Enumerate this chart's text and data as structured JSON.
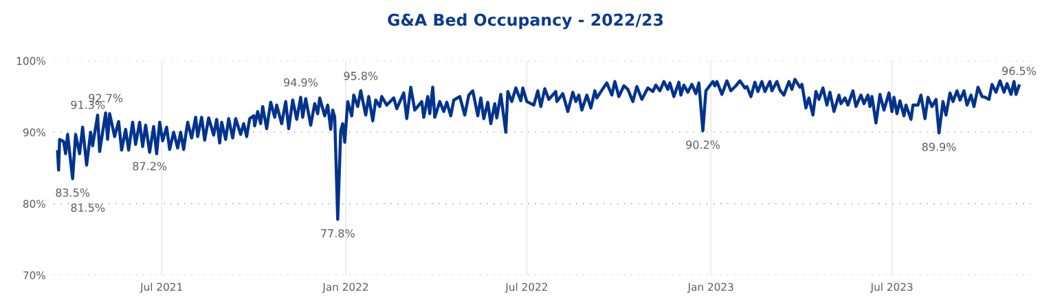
{
  "chart_data": {
    "type": "line",
    "title": "G&A Bed Occupancy - 2022/23",
    "x": [
      "2021-03-19",
      "2021-03-20",
      "2021-03-21",
      "2021-03-25",
      "2021-03-27",
      "2021-03-29",
      "2021-04-03",
      "2021-04-06",
      "2021-04-10",
      "2021-04-13",
      "2021-04-17",
      "2021-04-21",
      "2021-04-23",
      "2021-04-28",
      "2021-04-30",
      "2021-05-06",
      "2021-05-08",
      "2021-05-10",
      "2021-05-15",
      "2021-05-19",
      "2021-05-22",
      "2021-05-26",
      "2021-05-29",
      "2021-06-02",
      "2021-06-05",
      "2021-06-09",
      "2021-06-12",
      "2021-06-15",
      "2021-06-19",
      "2021-06-23",
      "2021-06-26",
      "2021-06-29",
      "2021-07-02",
      "2021-07-06",
      "2021-07-09",
      "2021-07-13",
      "2021-07-17",
      "2021-07-20",
      "2021-07-23",
      "2021-07-27",
      "2021-07-31",
      "2021-08-04",
      "2021-08-06",
      "2021-08-10",
      "2021-08-13",
      "2021-08-17",
      "2021-08-22",
      "2021-08-25",
      "2021-08-28",
      "2021-08-30",
      "2021-09-03",
      "2021-09-06",
      "2021-09-10",
      "2021-09-13",
      "2021-09-18",
      "2021-09-21",
      "2021-09-24",
      "2021-09-27",
      "2021-10-01",
      "2021-10-02",
      "2021-10-05",
      "2021-10-08",
      "2021-10-10",
      "2021-10-14",
      "2021-10-18",
      "2021-10-22",
      "2021-10-24",
      "2021-10-29",
      "2021-11-02",
      "2021-11-05",
      "2021-11-09",
      "2021-11-13",
      "2021-11-17",
      "2021-11-19",
      "2021-11-22",
      "2021-11-27",
      "2021-12-01",
      "2021-12-04",
      "2021-12-06",
      "2021-12-11",
      "2021-12-14",
      "2021-12-17",
      "2021-12-19",
      "2021-12-21",
      "2021-12-24",
      "2021-12-27",
      "2021-12-29",
      "2021-12-31",
      "2022-01-03",
      "2022-01-07",
      "2022-01-09",
      "2022-01-13",
      "2022-01-16",
      "2022-01-21",
      "2022-01-24",
      "2022-01-28",
      "2022-01-31",
      "2022-02-04",
      "2022-02-06",
      "2022-02-11",
      "2022-02-18",
      "2022-02-21",
      "2022-02-28",
      "2022-03-03",
      "2022-03-07",
      "2022-03-11",
      "2022-03-18",
      "2022-03-20",
      "2022-03-24",
      "2022-03-26",
      "2022-03-29",
      "2022-03-31",
      "2022-04-05",
      "2022-04-09",
      "2022-04-12",
      "2022-04-16",
      "2022-04-19",
      "2022-04-25",
      "2022-04-30",
      "2022-05-04",
      "2022-05-08",
      "2022-05-13",
      "2022-05-16",
      "2022-05-19",
      "2022-05-23",
      "2022-05-26",
      "2022-05-30",
      "2022-06-01",
      "2022-06-05",
      "2022-06-10",
      "2022-06-12",
      "2022-06-16",
      "2022-06-20",
      "2022-06-25",
      "2022-06-27",
      "2022-07-01",
      "2022-07-08",
      "2022-07-12",
      "2022-07-15",
      "2022-07-19",
      "2022-07-23",
      "2022-07-30",
      "2022-07-31",
      "2022-08-06",
      "2022-08-11",
      "2022-08-16",
      "2022-08-19",
      "2022-08-22",
      "2022-08-25",
      "2022-08-30",
      "2022-09-03",
      "2022-09-07",
      "2022-09-09",
      "2022-09-15",
      "2022-09-19",
      "2022-09-24",
      "2022-09-27",
      "2022-10-01",
      "2022-10-06",
      "2022-10-10",
      "2022-10-15",
      "2022-10-19",
      "2022-10-24",
      "2022-10-30",
      "2022-11-04",
      "2022-11-07",
      "2022-11-11",
      "2022-11-15",
      "2022-11-19",
      "2022-11-21",
      "2022-11-25",
      "2022-11-30",
      "2022-12-02",
      "2022-12-05",
      "2022-12-09",
      "2022-12-13",
      "2022-12-17",
      "2022-12-20",
      "2022-12-24",
      "2022-12-27",
      "2023-01-03",
      "2023-01-05",
      "2023-01-07",
      "2023-01-12",
      "2023-01-17",
      "2023-01-21",
      "2023-01-26",
      "2023-01-30",
      "2023-02-04",
      "2023-02-06",
      "2023-02-10",
      "2023-02-14",
      "2023-02-17",
      "2023-02-21",
      "2023-02-24",
      "2023-03-01",
      "2023-03-03",
      "2023-03-08",
      "2023-03-11",
      "2023-03-15",
      "2023-03-20",
      "2023-03-23",
      "2023-03-26",
      "2023-03-31",
      "2023-04-02",
      "2023-04-06",
      "2023-04-09",
      "2023-04-13",
      "2023-04-16",
      "2023-04-19",
      "2023-04-23",
      "2023-04-27",
      "2023-04-30",
      "2023-05-04",
      "2023-05-09",
      "2023-05-11",
      "2023-05-15",
      "2023-05-18",
      "2023-05-23",
      "2023-05-26",
      "2023-05-31",
      "2023-06-03",
      "2023-06-07",
      "2023-06-09",
      "2023-06-11",
      "2023-06-15",
      "2023-06-19",
      "2023-06-23",
      "2023-06-28",
      "2023-07-01",
      "2023-07-03",
      "2023-07-06",
      "2023-07-09",
      "2023-07-13",
      "2023-07-15",
      "2023-07-20",
      "2023-07-22",
      "2023-07-27",
      "2023-07-30",
      "2023-08-03",
      "2023-08-06",
      "2023-08-10",
      "2023-08-14",
      "2023-08-17",
      "2023-08-21",
      "2023-08-24",
      "2023-08-28",
      "2023-08-31",
      "2023-09-04",
      "2023-09-07",
      "2023-09-11",
      "2023-09-14",
      "2023-09-18",
      "2023-09-21",
      "2023-09-25",
      "2023-09-29",
      "2023-10-02",
      "2023-10-06",
      "2023-10-09",
      "2023-10-13",
      "2023-10-17",
      "2023-10-21",
      "2023-10-24",
      "2023-10-28",
      "2023-10-31",
      "2023-11-02",
      "2023-11-05"
    ],
    "series": [
      {
        "color": "#00338d",
        "values": [
          87.3,
          84.7,
          89.0,
          88.7,
          87.0,
          89.7,
          83.5,
          89.7,
          87.0,
          90.7,
          85.4,
          90.0,
          88.1,
          92.4,
          87.3,
          92.7,
          89.0,
          92.6,
          89.4,
          91.5,
          87.5,
          90.4,
          87.5,
          91.4,
          88.3,
          91.4,
          88.0,
          91.0,
          87.2,
          90.8,
          87.0,
          91.4,
          88.8,
          90.7,
          87.6,
          90.0,
          87.8,
          90.0,
          87.6,
          91.4,
          89.2,
          92.1,
          89.4,
          92.1,
          88.9,
          92.0,
          89.6,
          91.8,
          88.5,
          91.4,
          89.0,
          91.9,
          89.2,
          91.9,
          89.7,
          91.2,
          89.4,
          91.9,
          92.3,
          90.9,
          92.9,
          91.2,
          93.6,
          90.5,
          94.2,
          92.1,
          93.8,
          91.2,
          94.3,
          90.5,
          94.5,
          91.8,
          94.9,
          92.1,
          94.7,
          91.0,
          94.0,
          92.6,
          94.8,
          92.3,
          93.8,
          90.4,
          93.1,
          92.1,
          77.8,
          90.2,
          91.2,
          88.6,
          94.3,
          92.3,
          95.2,
          93.6,
          95.8,
          92.4,
          95.0,
          91.6,
          94.5,
          93.6,
          95.0,
          93.8,
          94.8,
          93.3,
          95.5,
          91.9,
          96.3,
          93.1,
          94.3,
          92.1,
          95.0,
          92.6,
          96.3,
          92.1,
          94.3,
          92.9,
          94.2,
          92.3,
          94.5,
          95.0,
          92.4,
          95.2,
          95.8,
          92.3,
          94.8,
          91.9,
          94.2,
          91.2,
          94.0,
          92.0,
          95.3,
          90.0,
          95.7,
          94.3,
          96.2,
          94.4,
          96.2,
          94.3,
          93.8,
          95.8,
          93.6,
          96.1,
          94.6,
          95.7,
          94.3,
          95.4,
          92.9,
          95.6,
          94.3,
          95.2,
          93.1,
          95.2,
          93.4,
          95.8,
          94.8,
          96.1,
          96.9,
          95.2,
          97.1,
          95.0,
          96.5,
          96.0,
          94.3,
          96.4,
          94.6,
          96.2,
          95.7,
          96.6,
          95.8,
          97.1,
          96.0,
          96.9,
          95.0,
          97.0,
          95.2,
          96.6,
          95.6,
          96.7,
          95.4,
          96.9,
          90.2,
          95.8,
          97.1,
          96.5,
          97.1,
          95.3,
          97.2,
          95.8,
          96.5,
          97.2,
          96.2,
          96.4,
          95.0,
          97.0,
          95.7,
          97.1,
          95.7,
          97.1,
          95.8,
          97.1,
          95.9,
          95.2,
          97.1,
          96.0,
          97.4,
          96.3,
          96.7,
          93.4,
          94.8,
          92.4,
          95.7,
          94.6,
          96.2,
          93.8,
          95.6,
          92.9,
          95.2,
          94.0,
          94.8,
          93.8,
          95.8,
          93.6,
          95.2,
          94.0,
          95.2,
          93.6,
          95.0,
          91.3,
          95.3,
          93.1,
          95.5,
          92.9,
          94.9,
          92.6,
          94.4,
          92.3,
          93.8,
          91.8,
          93.8,
          93.8,
          95.2,
          91.9,
          94.9,
          93.6,
          94.6,
          89.9,
          94.3,
          92.4,
          95.5,
          94.3,
          95.8,
          94.5,
          95.8,
          93.8,
          95.2,
          93.6,
          96.3,
          95.0,
          94.9,
          94.6,
          96.7,
          95.6,
          97.2,
          95.6,
          96.8,
          95.3,
          97.1,
          95.3,
          96.5
        ]
      }
    ],
    "xlim": [
      "2021-03-15",
      "2023-11-17"
    ],
    "xticks": [
      {
        "value": "2021-07-01",
        "label": "Jul 2021"
      },
      {
        "value": "2022-01-01",
        "label": "Jan 2022"
      },
      {
        "value": "2022-07-01",
        "label": "Jul 2022"
      },
      {
        "value": "2023-01-01",
        "label": "Jan 2023"
      },
      {
        "value": "2023-07-01",
        "label": "Jul 2023"
      }
    ],
    "ylim": [
      70,
      100
    ],
    "yticks": [
      {
        "value": 70,
        "label": "70%"
      },
      {
        "value": 80,
        "label": "80%"
      },
      {
        "value": 90,
        "label": "90%"
      },
      {
        "value": 100,
        "label": "100%"
      }
    ],
    "grid": true,
    "annotations": [
      "91.3%",
      "81.5%",
      {
        "text": "83.5%",
        "x": "2021-04-03",
        "y": 83.5
      },
      {
        "text": "92.7%",
        "x": "2021-05-06",
        "y": 92.7
      },
      {
        "text": "87.2%",
        "x": "2021-06-19",
        "y": 87.2
      },
      {
        "text": "94.9%",
        "x": "2021-11-17",
        "y": 94.9
      },
      {
        "text": "77.8%",
        "x": "2021-12-24",
        "y": 77.8
      },
      {
        "text": "95.8%",
        "x": "2022-01-16",
        "y": 95.8
      },
      {
        "text": "90.2%",
        "x": "2022-12-24",
        "y": 90.2
      },
      {
        "text": "89.9%",
        "x": "2023-08-17",
        "y": 89.9
      },
      {
        "text": "96.5%",
        "x": "2023-11-05",
        "y": 96.5
      }
    ]
  }
}
